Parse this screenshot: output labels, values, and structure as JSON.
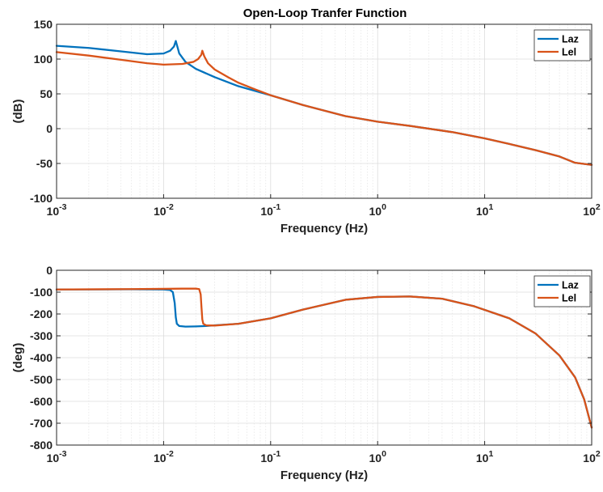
{
  "figure_title": "Open-Loop Tranfer Function",
  "chart_data": [
    {
      "type": "line",
      "xscale": "log",
      "xlim": [
        0.001,
        100
      ],
      "ylim": [
        -100,
        150
      ],
      "xlabel": "Frequency (Hz)",
      "ylabel": "(dB)",
      "xticks": [
        0.001,
        0.01,
        0.1,
        1,
        10,
        100
      ],
      "xtick_labels": [
        {
          "base": "10",
          "exp": "-3"
        },
        {
          "base": "10",
          "exp": "-2"
        },
        {
          "base": "10",
          "exp": "-1"
        },
        {
          "base": "10",
          "exp": "0"
        },
        {
          "base": "10",
          "exp": "1"
        },
        {
          "base": "10",
          "exp": "2"
        }
      ],
      "yticks": [
        -100,
        -50,
        0,
        50,
        100,
        150
      ],
      "ytick_labels": [
        "-100",
        "-50",
        "0",
        "50",
        "100",
        "150"
      ],
      "grid": true,
      "legend": "top-right",
      "series": [
        {
          "name": "Laz",
          "color": "#0072BD",
          "x": [
            0.001,
            0.002,
            0.004,
            0.007,
            0.01,
            0.0115,
            0.0125,
            0.013,
            0.0135,
            0.014,
            0.016,
            0.02,
            0.03,
            0.05,
            0.1,
            0.2,
            0.5,
            1,
            2,
            5,
            10,
            17,
            30,
            50,
            70,
            100
          ],
          "y": [
            119,
            116,
            111,
            107,
            108,
            112,
            118,
            126,
            117,
            108,
            96,
            86,
            74,
            61,
            48,
            34,
            18,
            10,
            4,
            -5,
            -14,
            -22,
            -31,
            -40,
            -49,
            -52
          ]
        },
        {
          "name": "Lel",
          "color": "#D95319",
          "x": [
            0.001,
            0.002,
            0.004,
            0.007,
            0.01,
            0.015,
            0.019,
            0.021,
            0.0225,
            0.023,
            0.024,
            0.026,
            0.03,
            0.04,
            0.05,
            0.07,
            0.1,
            0.2,
            0.5,
            1,
            2,
            5,
            10,
            17,
            30,
            50,
            70,
            100
          ],
          "y": [
            110,
            105,
            99,
            94,
            92,
            93,
            96,
            100,
            106,
            112,
            104,
            94,
            85,
            74,
            66,
            57,
            48,
            34,
            18,
            10,
            4,
            -5,
            -14,
            -22,
            -31,
            -40,
            -49,
            -52
          ]
        }
      ]
    },
    {
      "type": "line",
      "xscale": "log",
      "xlim": [
        0.001,
        100
      ],
      "ylim": [
        -800,
        0
      ],
      "xlabel": "Frequency (Hz)",
      "ylabel": "(deg)",
      "xticks": [
        0.001,
        0.01,
        0.1,
        1,
        10,
        100
      ],
      "xtick_labels": [
        {
          "base": "10",
          "exp": "-3"
        },
        {
          "base": "10",
          "exp": "-2"
        },
        {
          "base": "10",
          "exp": "-1"
        },
        {
          "base": "10",
          "exp": "0"
        },
        {
          "base": "10",
          "exp": "1"
        },
        {
          "base": "10",
          "exp": "2"
        }
      ],
      "yticks": [
        -800,
        -700,
        -600,
        -500,
        -400,
        -300,
        -200,
        -100,
        0
      ],
      "ytick_labels": [
        "-800",
        "-700",
        "-600",
        "-500",
        "-400",
        "-300",
        "-200",
        "-100",
        "0"
      ],
      "grid": true,
      "legend": "top-right",
      "series": [
        {
          "name": "Laz",
          "color": "#0072BD",
          "x": [
            0.001,
            0.005,
            0.01,
            0.0115,
            0.0122,
            0.0127,
            0.013,
            0.0133,
            0.014,
            0.016,
            0.02,
            0.025,
            0.03,
            0.05,
            0.1,
            0.2,
            0.5,
            1,
            2,
            4,
            8,
            17,
            30,
            50,
            70,
            85,
            100
          ],
          "y": [
            -88,
            -87,
            -88,
            -90,
            -100,
            -150,
            -215,
            -245,
            -255,
            -258,
            -257,
            -255,
            -252,
            -245,
            -220,
            -180,
            -135,
            -122,
            -120,
            -130,
            -165,
            -220,
            -290,
            -390,
            -490,
            -590,
            -720
          ]
        },
        {
          "name": "Lel",
          "color": "#D95319",
          "x": [
            0.001,
            0.005,
            0.01,
            0.015,
            0.02,
            0.0215,
            0.0222,
            0.0226,
            0.023,
            0.0235,
            0.025,
            0.03,
            0.05,
            0.1,
            0.2,
            0.5,
            1,
            2,
            4,
            8,
            17,
            30,
            50,
            70,
            85,
            100
          ],
          "y": [
            -88,
            -86,
            -85,
            -84,
            -84,
            -86,
            -110,
            -170,
            -225,
            -245,
            -252,
            -253,
            -245,
            -220,
            -180,
            -135,
            -122,
            -120,
            -130,
            -165,
            -220,
            -290,
            -390,
            -490,
            -590,
            -720
          ]
        }
      ]
    }
  ]
}
